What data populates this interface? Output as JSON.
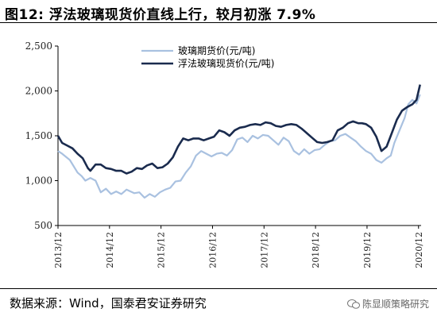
{
  "header": {
    "title": "图12: 浮法玻璃现货价直线上行，较月初涨 7.9%"
  },
  "footer": {
    "source": "数据来源：Wind，国泰君安证券研究",
    "watermark": "陈显顺策略研究"
  },
  "colors": {
    "futures": "#a9c1e0",
    "spot": "#1a2b4e",
    "axis": "#000000"
  },
  "chart_data": {
    "type": "line",
    "title": "",
    "xlabel": "",
    "ylabel": "",
    "ylim": [
      500,
      2500
    ],
    "yticks": [
      500,
      1000,
      1500,
      2000,
      2500
    ],
    "ytick_labels": [
      "500",
      "1,000",
      "1,500",
      "2,000",
      "2,500"
    ],
    "xlim": [
      2013.92,
      2020.97
    ],
    "xticks": [
      2013.92,
      2014.92,
      2015.92,
      2016.92,
      2017.92,
      2018.92,
      2019.92,
      2020.92
    ],
    "xtick_labels": [
      "2013/12",
      "2014/12",
      "2015/12",
      "2016/12",
      "2017/12",
      "2018/12",
      "2019/12",
      "2020/12"
    ],
    "grid": false,
    "legend_position": "top-center",
    "series": [
      {
        "name": "玻璃期货价(元/吨)",
        "key": "futures",
        "x": [
          2013.92,
          2014.0,
          2014.15,
          2014.3,
          2014.38,
          2014.45,
          2014.55,
          2014.65,
          2014.75,
          2014.85,
          2014.95,
          2015.05,
          2015.15,
          2015.25,
          2015.4,
          2015.5,
          2015.6,
          2015.7,
          2015.8,
          2015.9,
          2016.0,
          2016.1,
          2016.2,
          2016.3,
          2016.4,
          2016.5,
          2016.6,
          2016.7,
          2016.8,
          2016.9,
          2017.0,
          2017.1,
          2017.2,
          2017.3,
          2017.4,
          2017.5,
          2017.6,
          2017.7,
          2017.8,
          2017.9,
          2018.0,
          2018.1,
          2018.2,
          2018.3,
          2018.4,
          2018.5,
          2018.6,
          2018.7,
          2018.8,
          2018.9,
          2019.0,
          2019.1,
          2019.2,
          2019.3,
          2019.4,
          2019.5,
          2019.6,
          2019.7,
          2019.8,
          2019.9,
          2020.0,
          2020.1,
          2020.2,
          2020.3,
          2020.38,
          2020.45,
          2020.55,
          2020.65,
          2020.72,
          2020.8,
          2020.88,
          2020.95
        ],
        "y": [
          1330,
          1300,
          1230,
          1090,
          1050,
          1000,
          1030,
          1000,
          870,
          910,
          850,
          880,
          850,
          900,
          860,
          870,
          810,
          850,
          820,
          870,
          900,
          920,
          990,
          1000,
          1090,
          1160,
          1280,
          1330,
          1300,
          1270,
          1300,
          1310,
          1280,
          1340,
          1460,
          1480,
          1430,
          1500,
          1470,
          1510,
          1500,
          1450,
          1400,
          1480,
          1440,
          1330,
          1290,
          1350,
          1300,
          1340,
          1350,
          1400,
          1440,
          1450,
          1500,
          1520,
          1480,
          1440,
          1380,
          1330,
          1300,
          1230,
          1200,
          1250,
          1280,
          1420,
          1560,
          1700,
          1850,
          1900,
          1860,
          1960
        ]
      },
      {
        "name": "浮法玻璃现货价(元/吨)",
        "key": "spot",
        "x": [
          2013.92,
          2014.0,
          2014.1,
          2014.2,
          2014.3,
          2014.4,
          2014.5,
          2014.55,
          2014.65,
          2014.75,
          2014.85,
          2014.95,
          2015.05,
          2015.15,
          2015.25,
          2015.35,
          2015.45,
          2015.55,
          2015.65,
          2015.75,
          2015.85,
          2015.95,
          2016.05,
          2016.15,
          2016.25,
          2016.35,
          2016.45,
          2016.55,
          2016.65,
          2016.75,
          2016.85,
          2016.95,
          2017.05,
          2017.15,
          2017.25,
          2017.35,
          2017.45,
          2017.55,
          2017.65,
          2017.75,
          2017.85,
          2017.95,
          2018.05,
          2018.15,
          2018.25,
          2018.35,
          2018.45,
          2018.55,
          2018.65,
          2018.75,
          2018.85,
          2018.95,
          2019.05,
          2019.15,
          2019.25,
          2019.35,
          2019.45,
          2019.55,
          2019.65,
          2019.75,
          2019.82,
          2019.9,
          2020.0,
          2020.1,
          2020.2,
          2020.3,
          2020.4,
          2020.5,
          2020.6,
          2020.7,
          2020.8,
          2020.88,
          2020.95
        ],
        "y": [
          1500,
          1420,
          1390,
          1360,
          1300,
          1250,
          1140,
          1110,
          1180,
          1180,
          1140,
          1130,
          1110,
          1110,
          1080,
          1100,
          1140,
          1130,
          1170,
          1190,
          1140,
          1150,
          1190,
          1260,
          1380,
          1470,
          1450,
          1470,
          1470,
          1450,
          1470,
          1490,
          1560,
          1540,
          1500,
          1560,
          1590,
          1600,
          1620,
          1630,
          1620,
          1650,
          1640,
          1610,
          1600,
          1620,
          1630,
          1620,
          1580,
          1530,
          1480,
          1430,
          1420,
          1430,
          1450,
          1560,
          1590,
          1640,
          1660,
          1640,
          1640,
          1630,
          1590,
          1490,
          1330,
          1380,
          1530,
          1680,
          1780,
          1820,
          1850,
          1900,
          2070
        ]
      }
    ]
  }
}
